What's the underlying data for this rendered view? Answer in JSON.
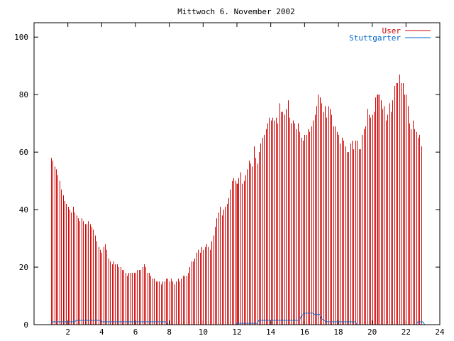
{
  "chart_data": {
    "type": "bar",
    "title": "Mittwoch 6. November 2002",
    "xlabel": "",
    "ylabel": "",
    "xlim": [
      0,
      24
    ],
    "ylim": [
      0,
      105
    ],
    "x_ticks": [
      2,
      4,
      6,
      8,
      10,
      12,
      14,
      16,
      18,
      20,
      22,
      24
    ],
    "y_ticks": [
      0,
      20,
      40,
      60,
      80,
      100
    ],
    "legend_position": "top-right",
    "colors": {
      "User": "#cc0000",
      "Stuttgarter": "#0066cc",
      "axis": "#000000",
      "text": "#000000"
    },
    "series": [
      {
        "name": "User",
        "render": "impulses",
        "points": [
          [
            1.0,
            58
          ],
          [
            1.1,
            57
          ],
          [
            1.2,
            55
          ],
          [
            1.3,
            54
          ],
          [
            1.4,
            52
          ],
          [
            1.5,
            50
          ],
          [
            1.6,
            47
          ],
          [
            1.7,
            45
          ],
          [
            1.8,
            43
          ],
          [
            1.9,
            42
          ],
          [
            2.0,
            41
          ],
          [
            2.1,
            40
          ],
          [
            2.2,
            39
          ],
          [
            2.3,
            41
          ],
          [
            2.4,
            39
          ],
          [
            2.5,
            38
          ],
          [
            2.6,
            37
          ],
          [
            2.7,
            36
          ],
          [
            2.8,
            37
          ],
          [
            2.9,
            36
          ],
          [
            3.0,
            35
          ],
          [
            3.1,
            35
          ],
          [
            3.2,
            36
          ],
          [
            3.3,
            35
          ],
          [
            3.4,
            34
          ],
          [
            3.5,
            33
          ],
          [
            3.6,
            31
          ],
          [
            3.7,
            29
          ],
          [
            3.8,
            27
          ],
          [
            3.9,
            26
          ],
          [
            4.0,
            25
          ],
          [
            4.1,
            27
          ],
          [
            4.2,
            28
          ],
          [
            4.3,
            26
          ],
          [
            4.4,
            23
          ],
          [
            4.5,
            22
          ],
          [
            4.6,
            21
          ],
          [
            4.7,
            22
          ],
          [
            4.8,
            21
          ],
          [
            4.9,
            21
          ],
          [
            5.0,
            20
          ],
          [
            5.1,
            20
          ],
          [
            5.2,
            19
          ],
          [
            5.3,
            19
          ],
          [
            5.4,
            18
          ],
          [
            5.5,
            17
          ],
          [
            5.6,
            18
          ],
          [
            5.7,
            18
          ],
          [
            5.8,
            18
          ],
          [
            5.9,
            18
          ],
          [
            6.0,
            18
          ],
          [
            6.1,
            19
          ],
          [
            6.2,
            19
          ],
          [
            6.3,
            19
          ],
          [
            6.4,
            20
          ],
          [
            6.5,
            21
          ],
          [
            6.6,
            20
          ],
          [
            6.7,
            18
          ],
          [
            6.8,
            18
          ],
          [
            6.9,
            17
          ],
          [
            7.0,
            16
          ],
          [
            7.1,
            16
          ],
          [
            7.2,
            15
          ],
          [
            7.3,
            15
          ],
          [
            7.4,
            15
          ],
          [
            7.5,
            14
          ],
          [
            7.6,
            15
          ],
          [
            7.7,
            15
          ],
          [
            7.8,
            16
          ],
          [
            7.9,
            16
          ],
          [
            8.0,
            15
          ],
          [
            8.1,
            16
          ],
          [
            8.2,
            15
          ],
          [
            8.3,
            14
          ],
          [
            8.4,
            15
          ],
          [
            8.5,
            16
          ],
          [
            8.6,
            15
          ],
          [
            8.7,
            16
          ],
          [
            8.8,
            17
          ],
          [
            8.9,
            17
          ],
          [
            9.0,
            17
          ],
          [
            9.1,
            18
          ],
          [
            9.2,
            20
          ],
          [
            9.3,
            22
          ],
          [
            9.4,
            22
          ],
          [
            9.5,
            23
          ],
          [
            9.6,
            25
          ],
          [
            9.7,
            26
          ],
          [
            9.8,
            25
          ],
          [
            9.9,
            27
          ],
          [
            10.0,
            26
          ],
          [
            10.1,
            27
          ],
          [
            10.2,
            28
          ],
          [
            10.3,
            27
          ],
          [
            10.4,
            26
          ],
          [
            10.5,
            29
          ],
          [
            10.6,
            31
          ],
          [
            10.7,
            34
          ],
          [
            10.8,
            37
          ],
          [
            10.9,
            39
          ],
          [
            11.0,
            41
          ],
          [
            11.1,
            38
          ],
          [
            11.2,
            40
          ],
          [
            11.3,
            41
          ],
          [
            11.4,
            42
          ],
          [
            11.5,
            44
          ],
          [
            11.6,
            47
          ],
          [
            11.7,
            50
          ],
          [
            11.8,
            51
          ],
          [
            11.9,
            50
          ],
          [
            12.0,
            49
          ],
          [
            12.1,
            51
          ],
          [
            12.2,
            53
          ],
          [
            12.3,
            49
          ],
          [
            12.4,
            50
          ],
          [
            12.5,
            52
          ],
          [
            12.6,
            54
          ],
          [
            12.7,
            57
          ],
          [
            12.8,
            56
          ],
          [
            12.9,
            55
          ],
          [
            13.0,
            62
          ],
          [
            13.1,
            58
          ],
          [
            13.2,
            56
          ],
          [
            13.3,
            60
          ],
          [
            13.4,
            63
          ],
          [
            13.5,
            65
          ],
          [
            13.6,
            66
          ],
          [
            13.7,
            68
          ],
          [
            13.8,
            70
          ],
          [
            13.9,
            72
          ],
          [
            14.0,
            71
          ],
          [
            14.1,
            72
          ],
          [
            14.2,
            71
          ],
          [
            14.3,
            72
          ],
          [
            14.4,
            70
          ],
          [
            14.5,
            77
          ],
          [
            14.6,
            74
          ],
          [
            14.7,
            74
          ],
          [
            14.8,
            73
          ],
          [
            14.9,
            75
          ],
          [
            15.0,
            78
          ],
          [
            15.1,
            72
          ],
          [
            15.2,
            70
          ],
          [
            15.3,
            71
          ],
          [
            15.4,
            70
          ],
          [
            15.5,
            68
          ],
          [
            15.6,
            70
          ],
          [
            15.7,
            67
          ],
          [
            15.8,
            65
          ],
          [
            15.9,
            64
          ],
          [
            16.0,
            66
          ],
          [
            16.1,
            66
          ],
          [
            16.2,
            68
          ],
          [
            16.3,
            67
          ],
          [
            16.4,
            69
          ],
          [
            16.5,
            71
          ],
          [
            16.6,
            73
          ],
          [
            16.7,
            76
          ],
          [
            16.8,
            80
          ],
          [
            16.9,
            79
          ],
          [
            17.0,
            77
          ],
          [
            17.1,
            74
          ],
          [
            17.2,
            76
          ],
          [
            17.3,
            72
          ],
          [
            17.4,
            76
          ],
          [
            17.5,
            75
          ],
          [
            17.6,
            73
          ],
          [
            17.7,
            69
          ],
          [
            17.8,
            69
          ],
          [
            17.9,
            67
          ],
          [
            18.0,
            66
          ],
          [
            18.1,
            63
          ],
          [
            18.2,
            65
          ],
          [
            18.3,
            64
          ],
          [
            18.4,
            62
          ],
          [
            18.5,
            60
          ],
          [
            18.6,
            60
          ],
          [
            18.7,
            63
          ],
          [
            18.8,
            64
          ],
          [
            18.9,
            61
          ],
          [
            19.0,
            64
          ],
          [
            19.1,
            64
          ],
          [
            19.2,
            61
          ],
          [
            19.3,
            61
          ],
          [
            19.4,
            66
          ],
          [
            19.5,
            68
          ],
          [
            19.6,
            69
          ],
          [
            19.7,
            75
          ],
          [
            19.8,
            73
          ],
          [
            19.9,
            72
          ],
          [
            20.0,
            73
          ],
          [
            20.1,
            74
          ],
          [
            20.2,
            79
          ],
          [
            20.3,
            80
          ],
          [
            20.4,
            80
          ],
          [
            20.5,
            78
          ],
          [
            20.6,
            75
          ],
          [
            20.7,
            76
          ],
          [
            20.8,
            71
          ],
          [
            20.9,
            73
          ],
          [
            21.0,
            77
          ],
          [
            21.1,
            74
          ],
          [
            21.2,
            78
          ],
          [
            21.3,
            83
          ],
          [
            21.4,
            84
          ],
          [
            21.5,
            84
          ],
          [
            21.6,
            87
          ],
          [
            21.7,
            84
          ],
          [
            21.8,
            84
          ],
          [
            21.9,
            80
          ],
          [
            22.0,
            80
          ],
          [
            22.1,
            76
          ],
          [
            22.2,
            70
          ],
          [
            22.3,
            68
          ],
          [
            22.4,
            71
          ],
          [
            22.5,
            68
          ],
          [
            22.6,
            67
          ],
          [
            22.7,
            65
          ],
          [
            22.8,
            66
          ],
          [
            22.9,
            62
          ]
        ],
        "highlight_x": [
          12.0,
          20.3
        ]
      },
      {
        "name": "Stuttgarter",
        "render": "line",
        "points": [
          [
            1.0,
            1
          ],
          [
            2.4,
            1
          ],
          [
            2.5,
            1.5
          ],
          [
            3.9,
            1.5
          ],
          [
            4.0,
            1
          ],
          [
            7.8,
            1
          ],
          [
            7.9,
            0
          ],
          [
            11.9,
            0
          ],
          [
            12.0,
            0.5
          ],
          [
            13.2,
            0.5
          ],
          [
            13.3,
            1.5
          ],
          [
            15.7,
            1.5
          ],
          [
            15.8,
            3
          ],
          [
            16.0,
            4
          ],
          [
            16.5,
            4
          ],
          [
            16.6,
            3.5
          ],
          [
            16.9,
            3.5
          ],
          [
            17.0,
            2
          ],
          [
            17.3,
            1
          ],
          [
            19.0,
            1
          ],
          [
            19.1,
            0
          ],
          [
            22.6,
            0
          ],
          [
            22.7,
            1
          ],
          [
            23.0,
            1
          ],
          [
            23.1,
            0
          ]
        ]
      }
    ]
  }
}
